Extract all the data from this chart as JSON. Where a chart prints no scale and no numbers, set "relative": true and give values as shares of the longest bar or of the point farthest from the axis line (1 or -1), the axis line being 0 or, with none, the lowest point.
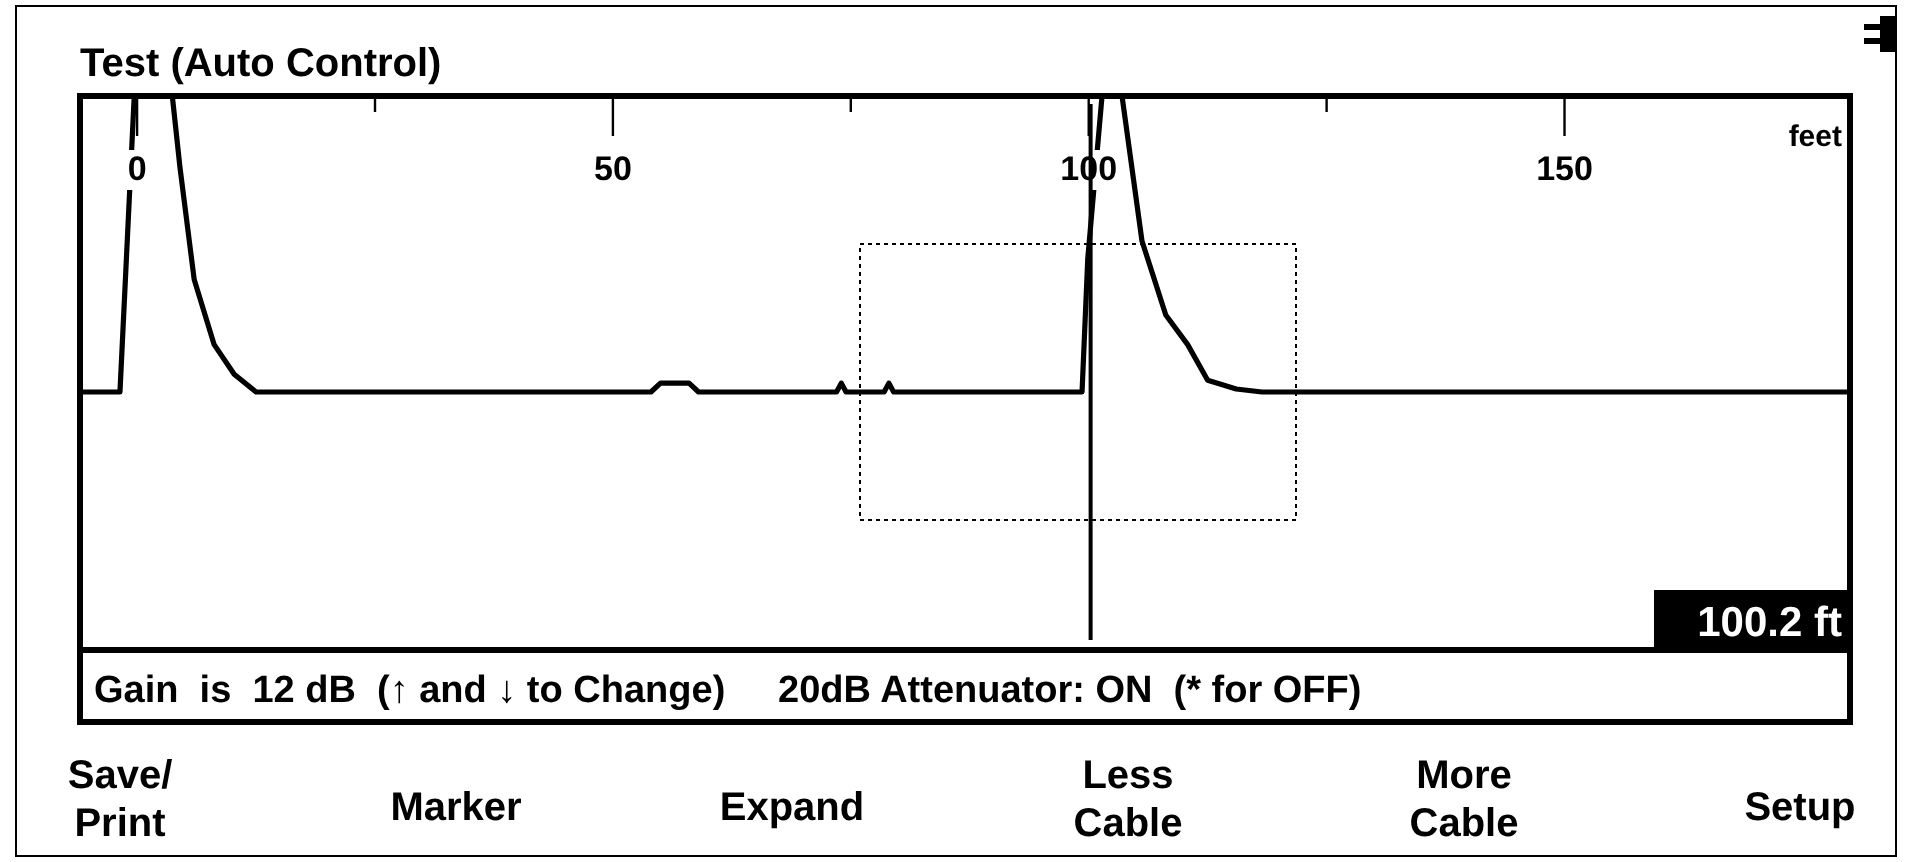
{
  "chart_data": {
    "type": "line",
    "title": "Test (Auto Control)",
    "xlabel": "feet",
    "relative": true,
    "xlim": [
      -6,
      180
    ],
    "xticks": [
      0,
      {
        "value": 25,
        "label": null
      },
      50,
      {
        "value": 75,
        "label": null
      },
      100,
      {
        "value": 125,
        "label": null
      },
      150
    ],
    "series": [
      {
        "color": "#000000",
        "x": [
          -6,
          -1.8,
          -1.2,
          -0.3,
          3.7,
          4.5,
          6.0,
          8.1,
          10.2,
          12.5,
          54,
          55,
          58,
          59,
          73.5,
          74,
          74.5,
          78.5,
          79,
          79.5,
          99.3,
          99.9,
          101.4,
          103.5,
          105.6,
          108.1,
          110.4,
          112.5,
          115.5,
          118.2,
          180
        ],
        "values": [
          0,
          0,
          0.4,
          1,
          1,
          0.76,
          0.38,
          0.16,
          0.06,
          0,
          0,
          0.03,
          0.03,
          0,
          0,
          0.03,
          0,
          0,
          0.03,
          0,
          0,
          0.45,
          1,
          1,
          0.51,
          0.26,
          0.16,
          0.04,
          0.01,
          0,
          0
        ]
      }
    ],
    "ref_lines": [
      {
        "axis": "x",
        "value": 100.2,
        "color": "#000000"
      }
    ],
    "annotations": [
      "100.2 ft",
      "Gain  is  12 dB  (↑ and ↓ to Change)     20dB Attenuator: ON  (* for OFF)",
      "Save/\nPrint",
      "Marker",
      "Expand",
      "Less\nCable",
      "More\nCable",
      "Setup"
    ]
  }
}
